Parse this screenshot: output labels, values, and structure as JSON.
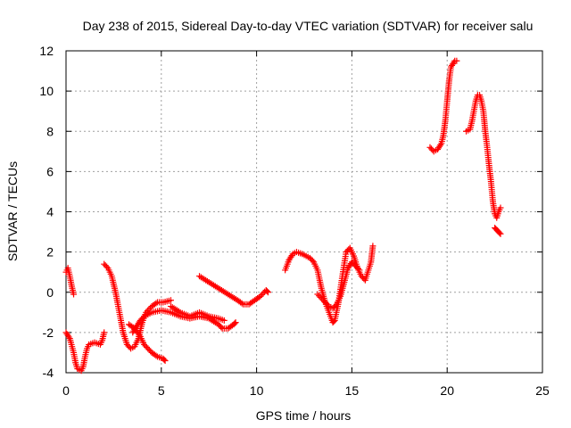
{
  "chart_data": {
    "type": "scatter",
    "title": "Day 238 of 2015, Sidereal Day-to-day VTEC variation (SDTVAR) for receiver salu",
    "xlabel": "GPS time / hours",
    "ylabel": "SDTVAR / TECUs",
    "xlim": [
      0,
      25
    ],
    "ylim": [
      -4,
      12
    ],
    "xticks": [
      "0",
      "5",
      "10",
      "15",
      "20",
      "25"
    ],
    "yticks": [
      "-4",
      "-2",
      "0",
      "2",
      "4",
      "6",
      "8",
      "10",
      "12"
    ],
    "grid": true,
    "legend": "none",
    "marker": "+",
    "color": "#ff0000",
    "series": [
      {
        "name": "s1",
        "points": [
          [
            0.0,
            1.0
          ],
          [
            0.1,
            1.2
          ],
          [
            0.2,
            0.8
          ],
          [
            0.3,
            0.3
          ],
          [
            0.4,
            -0.1
          ]
        ]
      },
      {
        "name": "s2",
        "points": [
          [
            0.0,
            -2.0
          ],
          [
            0.2,
            -2.3
          ],
          [
            0.4,
            -3.0
          ],
          [
            0.5,
            -3.5
          ],
          [
            0.6,
            -3.8
          ],
          [
            0.8,
            -3.9
          ],
          [
            0.9,
            -3.7
          ],
          [
            1.0,
            -3.2
          ],
          [
            1.1,
            -2.8
          ],
          [
            1.2,
            -2.6
          ],
          [
            1.5,
            -2.5
          ],
          [
            1.8,
            -2.6
          ],
          [
            1.9,
            -2.4
          ],
          [
            2.0,
            -2.0
          ]
        ]
      },
      {
        "name": "s3",
        "points": [
          [
            2.0,
            1.4
          ],
          [
            2.2,
            1.2
          ],
          [
            2.4,
            0.8
          ],
          [
            2.6,
            0.0
          ],
          [
            2.8,
            -1.0
          ],
          [
            3.0,
            -2.0
          ],
          [
            3.2,
            -2.6
          ],
          [
            3.4,
            -2.8
          ],
          [
            3.6,
            -2.7
          ],
          [
            3.8,
            -2.3
          ],
          [
            4.0,
            -1.5
          ],
          [
            4.2,
            -1.0
          ],
          [
            4.5,
            -0.7
          ],
          [
            4.8,
            -0.5
          ],
          [
            5.1,
            -0.5
          ],
          [
            5.5,
            -0.4
          ]
        ]
      },
      {
        "name": "s4",
        "points": [
          [
            3.3,
            -1.6
          ],
          [
            3.6,
            -1.8
          ],
          [
            3.9,
            -2.2
          ],
          [
            4.1,
            -2.6
          ],
          [
            4.3,
            -2.8
          ],
          [
            4.5,
            -3.0
          ],
          [
            4.8,
            -3.2
          ],
          [
            5.1,
            -3.3
          ],
          [
            5.2,
            -3.4
          ]
        ]
      },
      {
        "name": "s5",
        "points": [
          [
            3.5,
            -2.0
          ],
          [
            3.7,
            -1.7
          ],
          [
            3.9,
            -1.4
          ],
          [
            4.1,
            -1.2
          ],
          [
            4.5,
            -1.0
          ],
          [
            5.0,
            -0.9
          ],
          [
            5.5,
            -1.0
          ],
          [
            6.0,
            -1.2
          ],
          [
            6.5,
            -1.3
          ],
          [
            7.0,
            -1.2
          ],
          [
            7.5,
            -1.3
          ],
          [
            8.0,
            -1.6
          ],
          [
            8.2,
            -1.8
          ],
          [
            8.5,
            -1.8
          ],
          [
            8.8,
            -1.6
          ],
          [
            8.9,
            -1.5
          ]
        ]
      },
      {
        "name": "s6",
        "points": [
          [
            5.5,
            -0.7
          ],
          [
            6.0,
            -1.0
          ],
          [
            6.5,
            -1.2
          ],
          [
            7.0,
            -1.0
          ],
          [
            7.5,
            -1.2
          ],
          [
            8.0,
            -1.3
          ],
          [
            8.3,
            -1.4
          ]
        ]
      },
      {
        "name": "s7",
        "points": [
          [
            7.0,
            0.8
          ],
          [
            7.5,
            0.5
          ],
          [
            8.0,
            0.2
          ],
          [
            8.5,
            -0.1
          ],
          [
            9.0,
            -0.4
          ],
          [
            9.3,
            -0.6
          ],
          [
            9.6,
            -0.6
          ],
          [
            9.9,
            -0.4
          ],
          [
            10.2,
            -0.2
          ],
          [
            10.5,
            0.1
          ],
          [
            10.6,
            0.0
          ]
        ]
      },
      {
        "name": "s8",
        "points": [
          [
            11.5,
            1.1
          ],
          [
            11.7,
            1.6
          ],
          [
            11.9,
            1.9
          ],
          [
            12.1,
            2.0
          ],
          [
            12.4,
            1.9
          ],
          [
            12.8,
            1.7
          ],
          [
            13.0,
            1.5
          ],
          [
            13.2,
            1.1
          ],
          [
            13.4,
            0.2
          ],
          [
            13.6,
            -0.5
          ],
          [
            13.8,
            -1.0
          ],
          [
            14.0,
            -1.5
          ],
          [
            14.1,
            -1.4
          ],
          [
            14.3,
            -0.5
          ],
          [
            14.5,
            0.8
          ],
          [
            14.7,
            2.0
          ],
          [
            14.9,
            2.2
          ],
          [
            15.1,
            1.8
          ],
          [
            15.3,
            1.2
          ],
          [
            15.5,
            0.8
          ],
          [
            15.7,
            0.6
          ],
          [
            15.8,
            0.9
          ],
          [
            16.0,
            1.5
          ],
          [
            16.1,
            2.3
          ]
        ]
      },
      {
        "name": "s9",
        "points": [
          [
            13.2,
            -0.1
          ],
          [
            13.5,
            -0.4
          ],
          [
            13.8,
            -0.7
          ],
          [
            14.0,
            -0.8
          ],
          [
            14.2,
            -0.6
          ],
          [
            14.4,
            -0.2
          ],
          [
            14.6,
            0.5
          ],
          [
            14.8,
            1.2
          ],
          [
            15.0,
            1.5
          ],
          [
            15.2,
            1.3
          ],
          [
            15.4,
            1.1
          ]
        ]
      },
      {
        "name": "s10",
        "points": [
          [
            19.1,
            7.2
          ],
          [
            19.3,
            7.0
          ],
          [
            19.5,
            7.1
          ],
          [
            19.7,
            7.4
          ],
          [
            19.8,
            7.8
          ],
          [
            19.9,
            8.5
          ],
          [
            20.0,
            9.5
          ],
          [
            20.1,
            10.5
          ],
          [
            20.2,
            11.2
          ],
          [
            20.4,
            11.5
          ],
          [
            20.5,
            11.5
          ]
        ]
      },
      {
        "name": "s11",
        "points": [
          [
            21.0,
            8.0
          ],
          [
            21.2,
            8.1
          ],
          [
            21.3,
            8.5
          ],
          [
            21.4,
            9.0
          ],
          [
            21.5,
            9.5
          ],
          [
            21.6,
            9.8
          ],
          [
            21.7,
            9.8
          ],
          [
            21.8,
            9.5
          ],
          [
            21.9,
            9.0
          ],
          [
            22.0,
            8.0
          ],
          [
            22.1,
            7.2
          ],
          [
            22.2,
            6.3
          ],
          [
            22.3,
            5.5
          ],
          [
            22.4,
            4.5
          ],
          [
            22.5,
            3.9
          ],
          [
            22.6,
            3.7
          ],
          [
            22.7,
            4.0
          ],
          [
            22.8,
            4.2
          ]
        ]
      },
      {
        "name": "s12",
        "points": [
          [
            22.5,
            3.2
          ],
          [
            22.6,
            3.1
          ],
          [
            22.7,
            3.0
          ],
          [
            22.8,
            2.9
          ]
        ]
      }
    ]
  }
}
